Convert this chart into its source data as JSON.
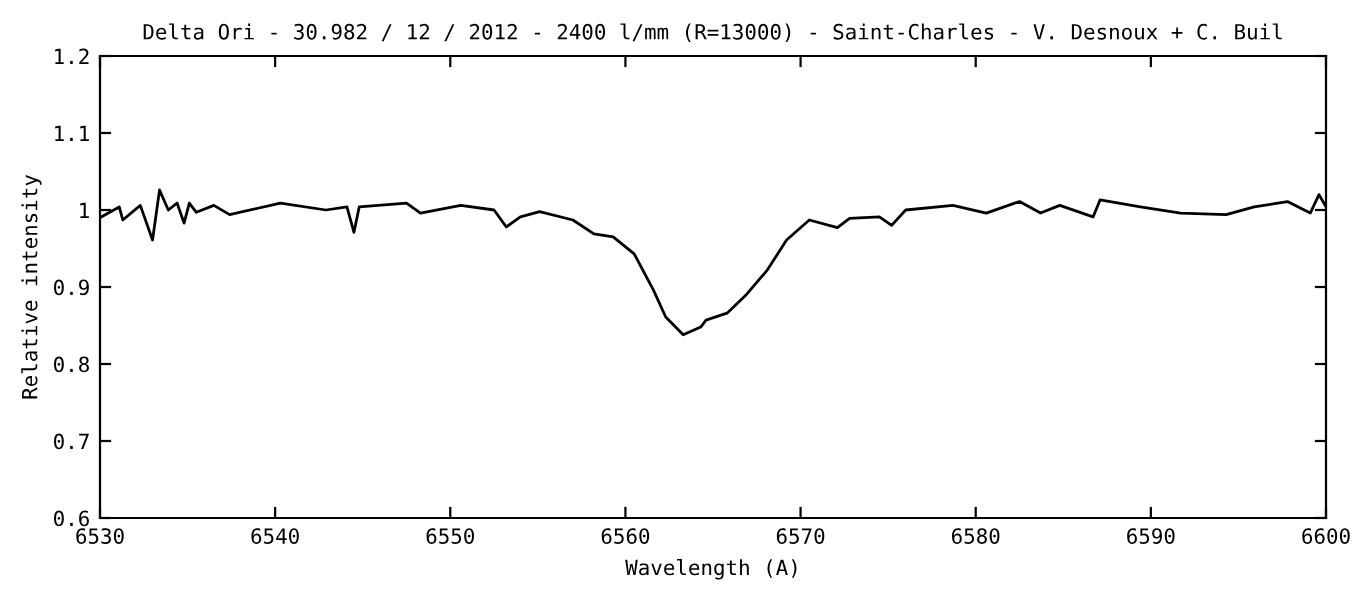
{
  "chart_data": {
    "type": "line",
    "title": "Delta Ori - 30.982 / 12 / 2012 - 2400 l/mm (R=13000) - Saint-Charles - V. Desnoux + C. Buil",
    "xlabel": "Wavelength (A)",
    "ylabel": "Relative intensity",
    "x": [
      6530.0,
      6531.1,
      6531.3,
      6532.3,
      6533.0,
      6533.4,
      6533.9,
      6534.4,
      6534.8,
      6535.1,
      6535.5,
      6536.5,
      6537.4,
      6540.3,
      6542.9,
      6544.1,
      6544.5,
      6544.8,
      6547.5,
      6548.3,
      6550.6,
      6552.5,
      6553.2,
      6554.0,
      6555.1,
      6557.0,
      6558.2,
      6559.3,
      6560.5,
      6561.6,
      6562.3,
      6563.3,
      6564.3,
      6564.6,
      6565.8,
      6566.9,
      6568.1,
      6569.2,
      6570.5,
      6572.1,
      6572.8,
      6574.5,
      6575.2,
      6576.0,
      6578.7,
      6580.6,
      6582.5,
      6583.7,
      6584.8,
      6586.7,
      6587.1,
      6589.4,
      6591.7,
      6594.3,
      6595.9,
      6597.8,
      6599.1,
      6599.6,
      6600.0
    ],
    "series": [
      {
        "color": "#000000",
        "values": [
          0.99,
          1.004,
          0.987,
          1.006,
          0.961,
          1.026,
          1.0,
          1.009,
          0.983,
          1.009,
          0.997,
          1.006,
          0.994,
          1.009,
          1.0,
          1.004,
          0.971,
          1.004,
          1.009,
          0.996,
          1.006,
          1.0,
          0.978,
          0.991,
          0.998,
          0.987,
          0.969,
          0.965,
          0.943,
          0.896,
          0.861,
          0.838,
          0.848,
          0.857,
          0.866,
          0.89,
          0.922,
          0.961,
          0.987,
          0.977,
          0.989,
          0.991,
          0.98,
          1.0,
          1.006,
          0.996,
          1.011,
          0.996,
          1.006,
          0.991,
          1.013,
          1.004,
          0.996,
          0.994,
          1.004,
          1.011,
          0.996,
          1.02,
          1.004
        ]
      }
    ],
    "xlim": [
      6530,
      6600
    ],
    "xticks": [
      6530,
      6540,
      6550,
      6560,
      6570,
      6580,
      6590,
      6600
    ],
    "ylim": [
      0.6,
      1.2
    ],
    "yticks": [
      {
        "value": 0.6,
        "label": "0.6"
      },
      {
        "value": 0.7,
        "label": "0.7"
      },
      {
        "value": 0.8,
        "label": "0.8"
      },
      {
        "value": 0.9,
        "label": "0.9"
      },
      {
        "value": 1.0,
        "label": "1"
      },
      {
        "value": 1.1,
        "label": "1.1"
      },
      {
        "value": 1.2,
        "label": "1.2"
      }
    ],
    "grid": false,
    "legend": false,
    "marker": "none",
    "line_style": "solid"
  }
}
